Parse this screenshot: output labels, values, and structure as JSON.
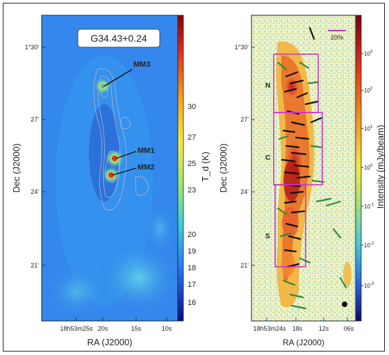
{
  "left_panel": {
    "title": "G34.43+0.24",
    "sources": [
      {
        "name": "MM3"
      },
      {
        "name": "MM1"
      },
      {
        "name": "MM2"
      }
    ],
    "y_ticks": [
      "1°30'",
      "27'",
      "24'",
      "21'"
    ],
    "x_ticks": [
      "18h53m25s",
      "20s",
      "15s",
      "10s"
    ],
    "xlabel": "RA (J2000)",
    "ylabel": "Dec (J2000)",
    "colorbar": {
      "label": "T_d (K)",
      "ticks": [
        "30",
        "27",
        "25",
        "23",
        "20",
        "19",
        "18",
        "17",
        "16"
      ]
    }
  },
  "right_panel": {
    "scale_label": "20%",
    "regions": [
      "N",
      "C",
      "S"
    ],
    "y_ticks": [
      "1°30'",
      "27'",
      "24'",
      "21'"
    ],
    "x_ticks": [
      "18h53m24s",
      "18s",
      "12s",
      "06s"
    ],
    "xlabel": "RA (J2000)",
    "ylabel": "Dec (J2000)",
    "colorbar": {
      "label": "Intensity (mJy/beam)",
      "ticks": [
        "10^3",
        "10^2",
        "10^1",
        "10^0",
        "10^-1",
        "10^-2",
        "10^-3"
      ]
    }
  },
  "colors": {
    "box": "#cc33cc",
    "vector_dark": "#111111",
    "vector_green": "#2e8b3a",
    "contour": "#b8b8cc"
  }
}
